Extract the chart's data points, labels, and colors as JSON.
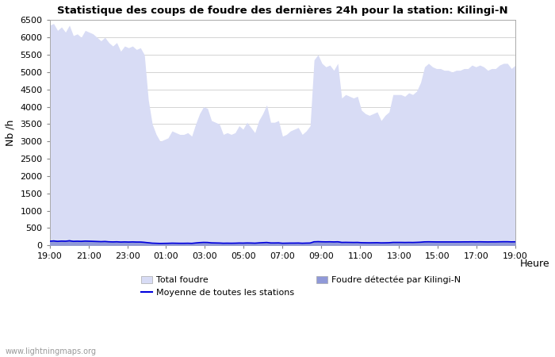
{
  "title": "Statistique des coups de foudre des dernières 24h pour la station: Kilingi-N",
  "xlabel": "Heure",
  "ylabel": "Nb /h",
  "ylim": [
    0,
    6500
  ],
  "yticks": [
    0,
    500,
    1000,
    1500,
    2000,
    2500,
    3000,
    3500,
    4000,
    4500,
    5000,
    5500,
    6000,
    6500
  ],
  "xtick_labels": [
    "19:00",
    "21:00",
    "23:00",
    "01:00",
    "03:00",
    "05:00",
    "07:00",
    "09:00",
    "11:00",
    "13:00",
    "15:00",
    "17:00",
    "19:00"
  ],
  "color_total": "#d8dcf5",
  "color_kilingi": "#9099d8",
  "color_moyenne": "#0000dd",
  "bg_color": "#ffffff",
  "grid_color": "#cccccc",
  "watermark": "www.lightningmaps.org",
  "legend_total": "Total foudre",
  "legend_kilingi": "Foudre détectée par Kilingi-N",
  "legend_moyenne": "Moyenne de toutes les stations",
  "total_foudre": [
    6350,
    6400,
    6200,
    6300,
    6150,
    6350,
    6050,
    6100,
    6000,
    6200,
    6150,
    6100,
    6000,
    5900,
    6000,
    5850,
    5750,
    5850,
    5600,
    5750,
    5700,
    5750,
    5650,
    5700,
    5500,
    4200,
    3500,
    3200,
    3000,
    3050,
    3100,
    3300,
    3250,
    3200,
    3200,
    3250,
    3150,
    3500,
    3800,
    4000,
    3950,
    3600,
    3550,
    3500,
    3200,
    3250,
    3200,
    3250,
    3450,
    3350,
    3550,
    3400,
    3250,
    3600,
    3800,
    4050,
    3550,
    3550,
    3600,
    3150,
    3200,
    3300,
    3350,
    3400,
    3200,
    3300,
    3450,
    5350,
    5500,
    5250,
    5150,
    5200,
    5050,
    5250,
    4250,
    4350,
    4300,
    4250,
    4300,
    3900,
    3800,
    3750,
    3800,
    3850,
    3600,
    3750,
    3850,
    4350,
    4350,
    4350,
    4300,
    4400,
    4350,
    4450,
    4700,
    5150,
    5250,
    5150,
    5100,
    5100,
    5050,
    5050,
    5000,
    5050,
    5050,
    5100,
    5100,
    5200,
    5150,
    5200,
    5150,
    5050,
    5100,
    5100,
    5200,
    5250,
    5250,
    5100,
    5200
  ],
  "kilingi": [
    150,
    160,
    145,
    155,
    150,
    165,
    145,
    150,
    145,
    155,
    150,
    145,
    140,
    135,
    140,
    130,
    125,
    130,
    120,
    125,
    120,
    125,
    120,
    120,
    110,
    95,
    80,
    75,
    70,
    72,
    75,
    80,
    78,
    75,
    75,
    78,
    73,
    88,
    100,
    108,
    105,
    90,
    88,
    85,
    78,
    80,
    78,
    80,
    85,
    82,
    88,
    85,
    80,
    90,
    97,
    105,
    88,
    88,
    90,
    78,
    80,
    82,
    83,
    85,
    78,
    82,
    85,
    130,
    135,
    130,
    128,
    130,
    125,
    130,
    108,
    110,
    108,
    105,
    108,
    97,
    95,
    93,
    95,
    97,
    90,
    93,
    96,
    108,
    108,
    108,
    105,
    108,
    105,
    110,
    115,
    128,
    130,
    128,
    125,
    125,
    125,
    125,
    125,
    125,
    125,
    128,
    128,
    130,
    128,
    130,
    128,
    125,
    128,
    128,
    130,
    132,
    132,
    128,
    130
  ],
  "moyenne": [
    120,
    128,
    116,
    124,
    120,
    132,
    116,
    120,
    116,
    124,
    120,
    116,
    112,
    108,
    112,
    104,
    100,
    104,
    96,
    100,
    96,
    100,
    96,
    96,
    88,
    76,
    64,
    60,
    56,
    58,
    60,
    64,
    62,
    60,
    60,
    62,
    58,
    70,
    80,
    86,
    84,
    72,
    70,
    68,
    62,
    64,
    62,
    64,
    68,
    66,
    70,
    68,
    64,
    72,
    78,
    84,
    70,
    70,
    72,
    62,
    64,
    66,
    66,
    68,
    62,
    66,
    68,
    104,
    108,
    104,
    102,
    104,
    100,
    104,
    86,
    88,
    86,
    84,
    86,
    78,
    76,
    74,
    76,
    78,
    72,
    74,
    77,
    86,
    86,
    86,
    84,
    86,
    84,
    88,
    92,
    102,
    104,
    102,
    100,
    100,
    100,
    100,
    100,
    100,
    100,
    102,
    102,
    104,
    102,
    104,
    102,
    100,
    102,
    102,
    104,
    106,
    106,
    102,
    104
  ]
}
